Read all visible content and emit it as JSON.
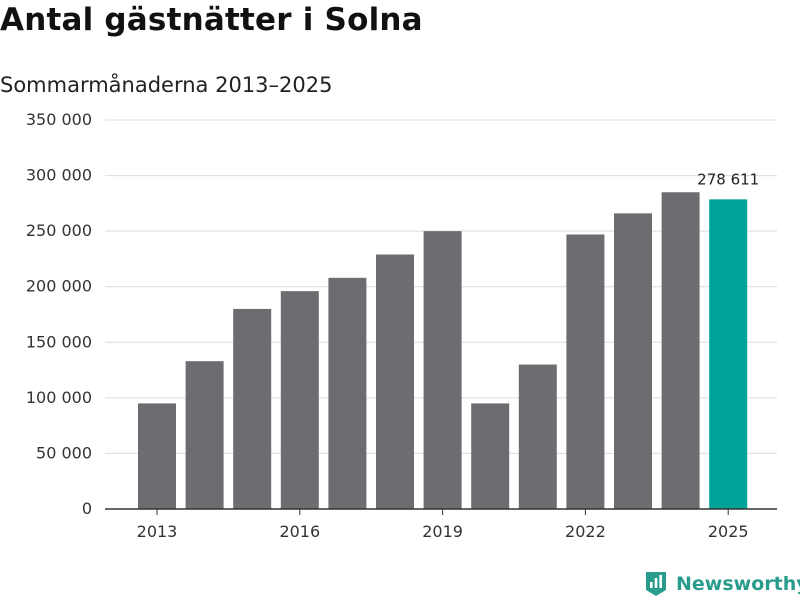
{
  "title": "Antal gästnätter i Solna",
  "subtitle": "Sommarmånaderna 2013–2025",
  "brand": {
    "name": "Newsworthy",
    "color": "#2a9c8d",
    "icon": "newsworthy-logo-icon"
  },
  "colors": {
    "bar": "#6d6c71",
    "highlight": "#00a39a",
    "grid": "#dcdcdc",
    "axis": "#333333"
  },
  "chart_data": {
    "type": "bar",
    "title": "Antal gästnätter i Solna",
    "subtitle": "Sommarmånaderna 2013–2025",
    "categories": [
      "2013",
      "2014",
      "2015",
      "2016",
      "2017",
      "2018",
      "2019",
      "2020",
      "2021",
      "2022",
      "2023",
      "2024",
      "2025"
    ],
    "values": [
      95000,
      133000,
      180000,
      196000,
      208000,
      229000,
      250000,
      95000,
      130000,
      247000,
      266000,
      285000,
      278611
    ],
    "highlight_index": 12,
    "highlight_label": "278 611",
    "x_tick_labels": [
      "2013",
      "2016",
      "2019",
      "2022",
      "2025"
    ],
    "y_ticks": [
      0,
      50000,
      100000,
      150000,
      200000,
      250000,
      300000,
      350000
    ],
    "y_tick_labels": [
      "0",
      "50 000",
      "100 000",
      "150 000",
      "200 000",
      "250 000",
      "300 000",
      "350 000"
    ],
    "ylim": [
      0,
      350000
    ],
    "grid": true,
    "xlabel": "",
    "ylabel": ""
  }
}
